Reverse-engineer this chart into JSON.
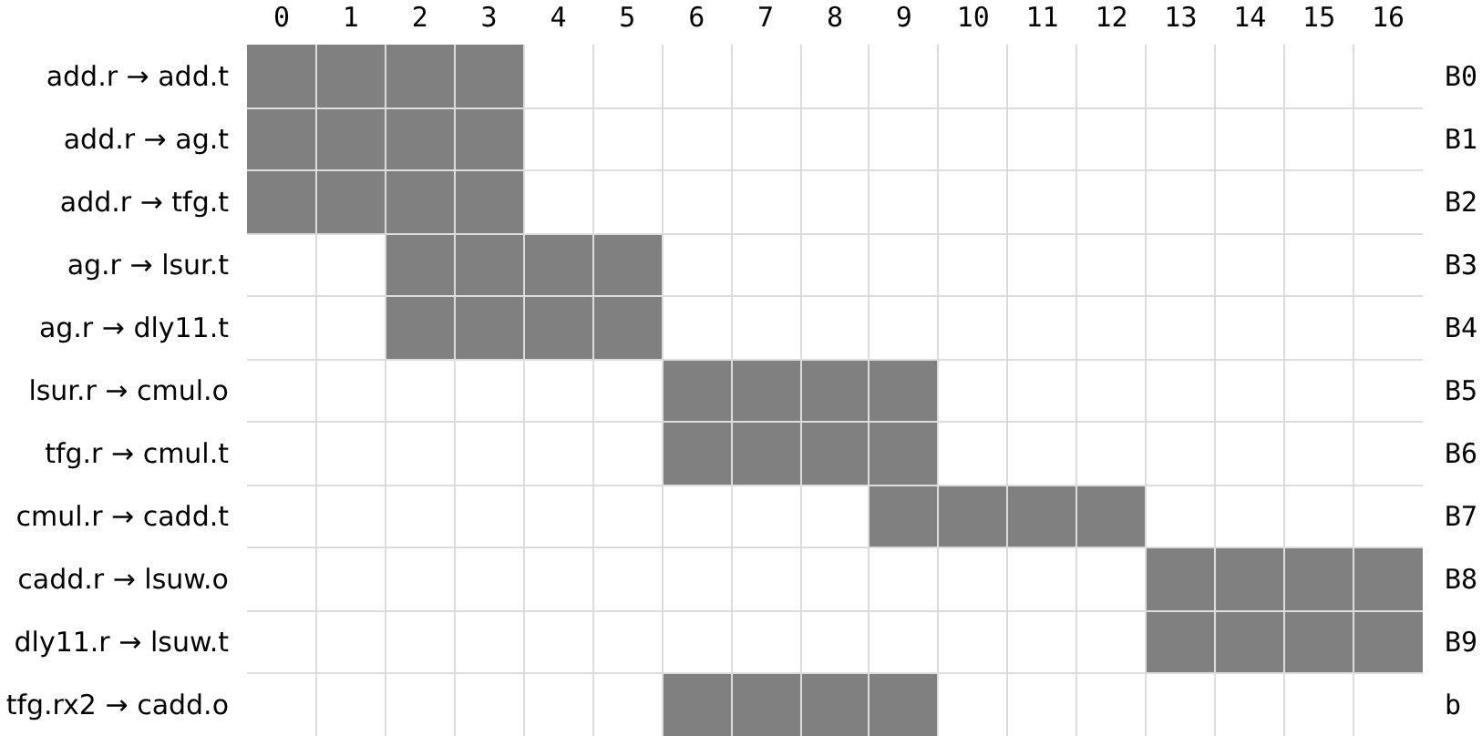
{
  "chart_data": {
    "type": "bar",
    "orientation": "horizontal",
    "categories": [
      "add.r → add.t",
      "add.r → ag.t",
      "add.r → tfg.t",
      "ag.r → lsur.t",
      "ag.r → dly11.t",
      "lsur.r → cmul.o",
      "tfg.r → cmul.t",
      "cmul.r → cadd.t",
      "cadd.r → lsuw.o",
      "dly11.r → lsuw.t",
      "tfg.rx2 → cadd.o"
    ],
    "y2_categories": [
      "B0",
      "B1",
      "B2",
      "B3",
      "B4",
      "B5",
      "B6",
      "B7",
      "B8",
      "B9",
      "b"
    ],
    "base": [
      -0.5,
      -0.5,
      -0.5,
      1.5,
      1.5,
      5.5,
      5.5,
      8.5,
      12.5,
      12.5,
      5.5
    ],
    "values": [
      4,
      4,
      4,
      4,
      4,
      4,
      4,
      4,
      4,
      4,
      4
    ],
    "color": "#808080",
    "grid": true,
    "xlim": [
      -0.5,
      16.5
    ],
    "xticks": [
      0,
      1,
      2,
      3,
      4,
      5,
      6,
      7,
      8,
      9,
      10,
      11,
      12,
      13,
      14,
      15,
      16
    ]
  }
}
